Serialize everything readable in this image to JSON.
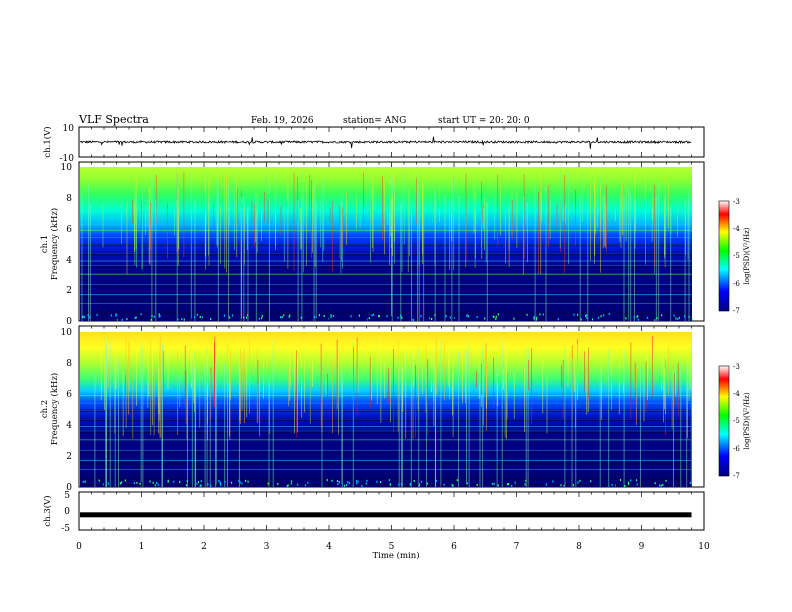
{
  "header": {
    "title": "VLF Spectra",
    "date": "Feb. 19, 2026",
    "station": "station= ANG",
    "start": "start  UT =   20: 20: 0"
  },
  "colors": {
    "spectrogram_scale": [
      "#000080",
      "#0000ff",
      "#00ffff",
      "#00ff00",
      "#ffff00",
      "#ff0000",
      "#ffffff"
    ],
    "trace": "#000000"
  },
  "chart_data": [
    {
      "type": "line",
      "name": "ch1-waveform",
      "ylabel": "ch.1(V)",
      "ylim": [
        -10,
        10
      ],
      "yticks": [
        "10",
        "-10"
      ],
      "xlim": [
        0,
        10
      ],
      "baseline": 0
    },
    {
      "type": "heatmap",
      "name": "ch1-spectrogram",
      "ylabel": "ch.1 Frequency (kHz)",
      "ylabel_line1": "ch.1",
      "ylabel_line2": "Frequency (kHz)",
      "ylim": [
        0,
        10
      ],
      "yticks": [
        "0",
        "2",
        "4",
        "6",
        "8",
        "10"
      ],
      "xlim": [
        0,
        9.8
      ],
      "colorbar": {
        "label": "log(PSD)(V²/Hz)",
        "range": [
          -7,
          -3
        ],
        "ticks": [
          "-3",
          "-4",
          "-5",
          "-6",
          "-7"
        ]
      }
    },
    {
      "type": "heatmap",
      "name": "ch2-spectrogram",
      "ylabel": "ch.2 Frequency (kHz)",
      "ylabel_line1": "ch.2",
      "ylabel_line2": "Frequency (kHz)",
      "ylim": [
        0,
        10
      ],
      "yticks": [
        "0",
        "2",
        "4",
        "6",
        "8",
        "10"
      ],
      "xlim": [
        0,
        9.8
      ],
      "colorbar": {
        "label": "log(PSD)(V²/Hz)",
        "range": [
          -7,
          -3
        ],
        "ticks": [
          "-3",
          "-4",
          "-5",
          "-6",
          "-7"
        ]
      }
    },
    {
      "type": "line",
      "name": "ch3-waveform",
      "ylabel": "ch.3(V)",
      "ylim": [
        -5,
        5
      ],
      "yticks": [
        "5",
        "0",
        "-5"
      ],
      "xlim": [
        0,
        10
      ],
      "baseline": -1
    }
  ],
  "xaxis": {
    "label": "Time  (min)",
    "ticks": [
      "0",
      "1",
      "2",
      "3",
      "4",
      "5",
      "6",
      "7",
      "8",
      "9",
      "10"
    ],
    "range": [
      0,
      10
    ]
  }
}
